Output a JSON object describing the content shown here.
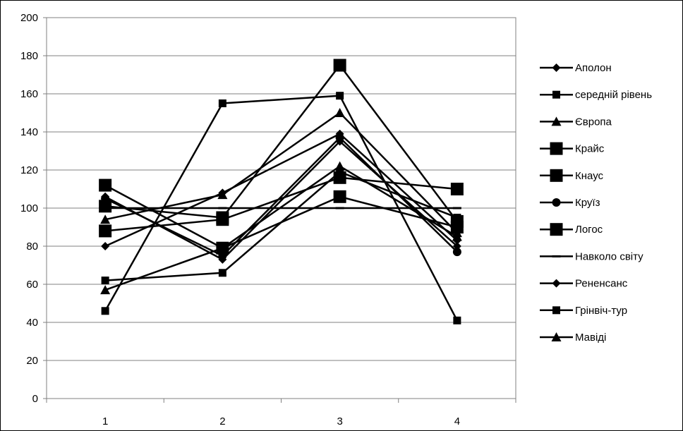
{
  "chart_data": {
    "type": "line",
    "title": "",
    "xlabel": "",
    "ylabel": "",
    "categories": [
      "1",
      "2",
      "3",
      "4"
    ],
    "ylim": [
      0,
      200
    ],
    "yticks": [
      0,
      20,
      40,
      60,
      80,
      100,
      120,
      140,
      160,
      180,
      200
    ],
    "grid": "horizontal",
    "legend_position": "right",
    "series": [
      {
        "name": "Аполон",
        "marker": "diamond",
        "values": [
          80,
          108,
          139,
          83
        ]
      },
      {
        "name": "середній рівень",
        "marker": "square",
        "values": [
          46,
          155,
          159,
          41
        ]
      },
      {
        "name": "Європа",
        "marker": "triangle",
        "values": [
          94,
          107,
          150,
          87
        ]
      },
      {
        "name": "Крайс",
        "marker": "square-large",
        "values": [
          101,
          95,
          175,
          93
        ]
      },
      {
        "name": "Кнаус",
        "marker": "square-large",
        "values": [
          88,
          94,
          116,
          110
        ]
      },
      {
        "name": "Круїз",
        "marker": "circle",
        "values": [
          105,
          75,
          137,
          77
        ]
      },
      {
        "name": "Логос",
        "marker": "square-large",
        "values": [
          112,
          79,
          106,
          90
        ]
      },
      {
        "name": "Навколо світу",
        "marker": "dash",
        "values": [
          100,
          100,
          100,
          100
        ]
      },
      {
        "name": "Ренен­санс",
        "marker": "diamond",
        "values": [
          106,
          73,
          135,
          80
        ]
      },
      {
        "name": "Грінвіч-тур",
        "marker": "square",
        "values": [
          62,
          66,
          119,
          95
        ]
      },
      {
        "name": "Мавіді",
        "marker": "triangle",
        "values": [
          57,
          79,
          122,
          85
        ]
      }
    ]
  }
}
